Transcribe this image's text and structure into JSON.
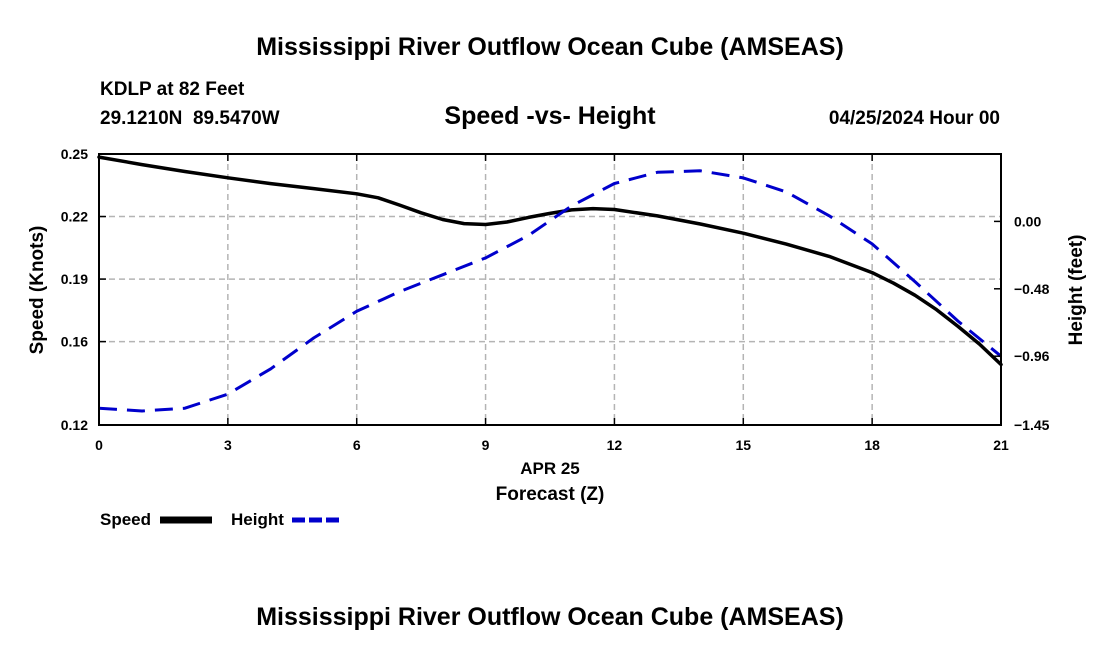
{
  "chart_data": {
    "type": "line",
    "title": "Mississippi River Outflow Ocean Cube (AMSEAS)",
    "footer_title": "Mississippi River Outflow Ocean Cube (AMSEAS)",
    "station_line1": "KDLP at 82 Feet",
    "station_line2": "29.1210N  89.5470W",
    "subtitle": "Speed -vs- Height",
    "datetime": "04/25/2024 Hour 00",
    "xlabel_date": "APR 25",
    "xlabel": "Forecast (Z)",
    "ylabel_left": "Speed (Knots)",
    "ylabel_right": "Height (feet)",
    "xlim": [
      0,
      21
    ],
    "ylim_left": [
      0.12,
      0.25
    ],
    "ylim_right": [
      -1.45,
      0.48
    ],
    "x_ticks": [
      0,
      3,
      6,
      9,
      12,
      15,
      18,
      21
    ],
    "x_tick_labels": [
      "0",
      "3",
      "6",
      "9",
      "12",
      "15",
      "18",
      "21"
    ],
    "y_left_ticks": [
      0.12,
      0.16,
      0.19,
      0.22,
      0.25
    ],
    "y_left_tick_labels": [
      "0.12",
      "0.16",
      "0.19",
      "0.22",
      "0.25"
    ],
    "y_right_ticks": [
      -1.45,
      -0.96,
      -0.48,
      0.0
    ],
    "y_right_tick_labels": [
      "−1.45",
      "−0.96",
      "−0.48",
      "0.00"
    ],
    "grid": true,
    "legend": [
      {
        "name": "Speed",
        "color": "#000000",
        "style": "solid"
      },
      {
        "name": "Height",
        "color": "#0000cc",
        "style": "dashed"
      }
    ],
    "series": [
      {
        "name": "Speed",
        "axis": "left",
        "color": "#000000",
        "x": [
          0,
          1,
          2,
          3,
          4,
          5,
          6,
          6.5,
          7,
          7.5,
          8,
          8.5,
          9,
          9.5,
          10,
          10.5,
          11,
          11.5,
          12,
          13,
          14,
          15,
          16,
          17,
          18,
          18.5,
          19,
          19.5,
          20,
          20.5,
          21
        ],
        "values": [
          0.2485,
          0.2449,
          0.2416,
          0.2386,
          0.2358,
          0.2334,
          0.2309,
          0.229,
          0.2255,
          0.2218,
          0.2186,
          0.2166,
          0.2162,
          0.2174,
          0.2196,
          0.2215,
          0.2232,
          0.2238,
          0.2234,
          0.2203,
          0.2164,
          0.212,
          0.2068,
          0.2009,
          0.1931,
          0.188,
          0.1822,
          0.1753,
          0.1673,
          0.1588,
          0.149
        ]
      },
      {
        "name": "Height",
        "axis": "right",
        "color": "#0000cc",
        "x": [
          0,
          1,
          2,
          3,
          4,
          5,
          6,
          7,
          8,
          9,
          10,
          11,
          12,
          13,
          14,
          15,
          16,
          17,
          18,
          19,
          20,
          21
        ],
        "values": [
          -1.33,
          -1.35,
          -1.33,
          -1.23,
          -1.05,
          -0.83,
          -0.64,
          -0.5,
          -0.38,
          -0.26,
          -0.1,
          0.11,
          0.27,
          0.35,
          0.36,
          0.31,
          0.21,
          0.04,
          -0.16,
          -0.43,
          -0.71,
          -0.96
        ]
      }
    ]
  }
}
